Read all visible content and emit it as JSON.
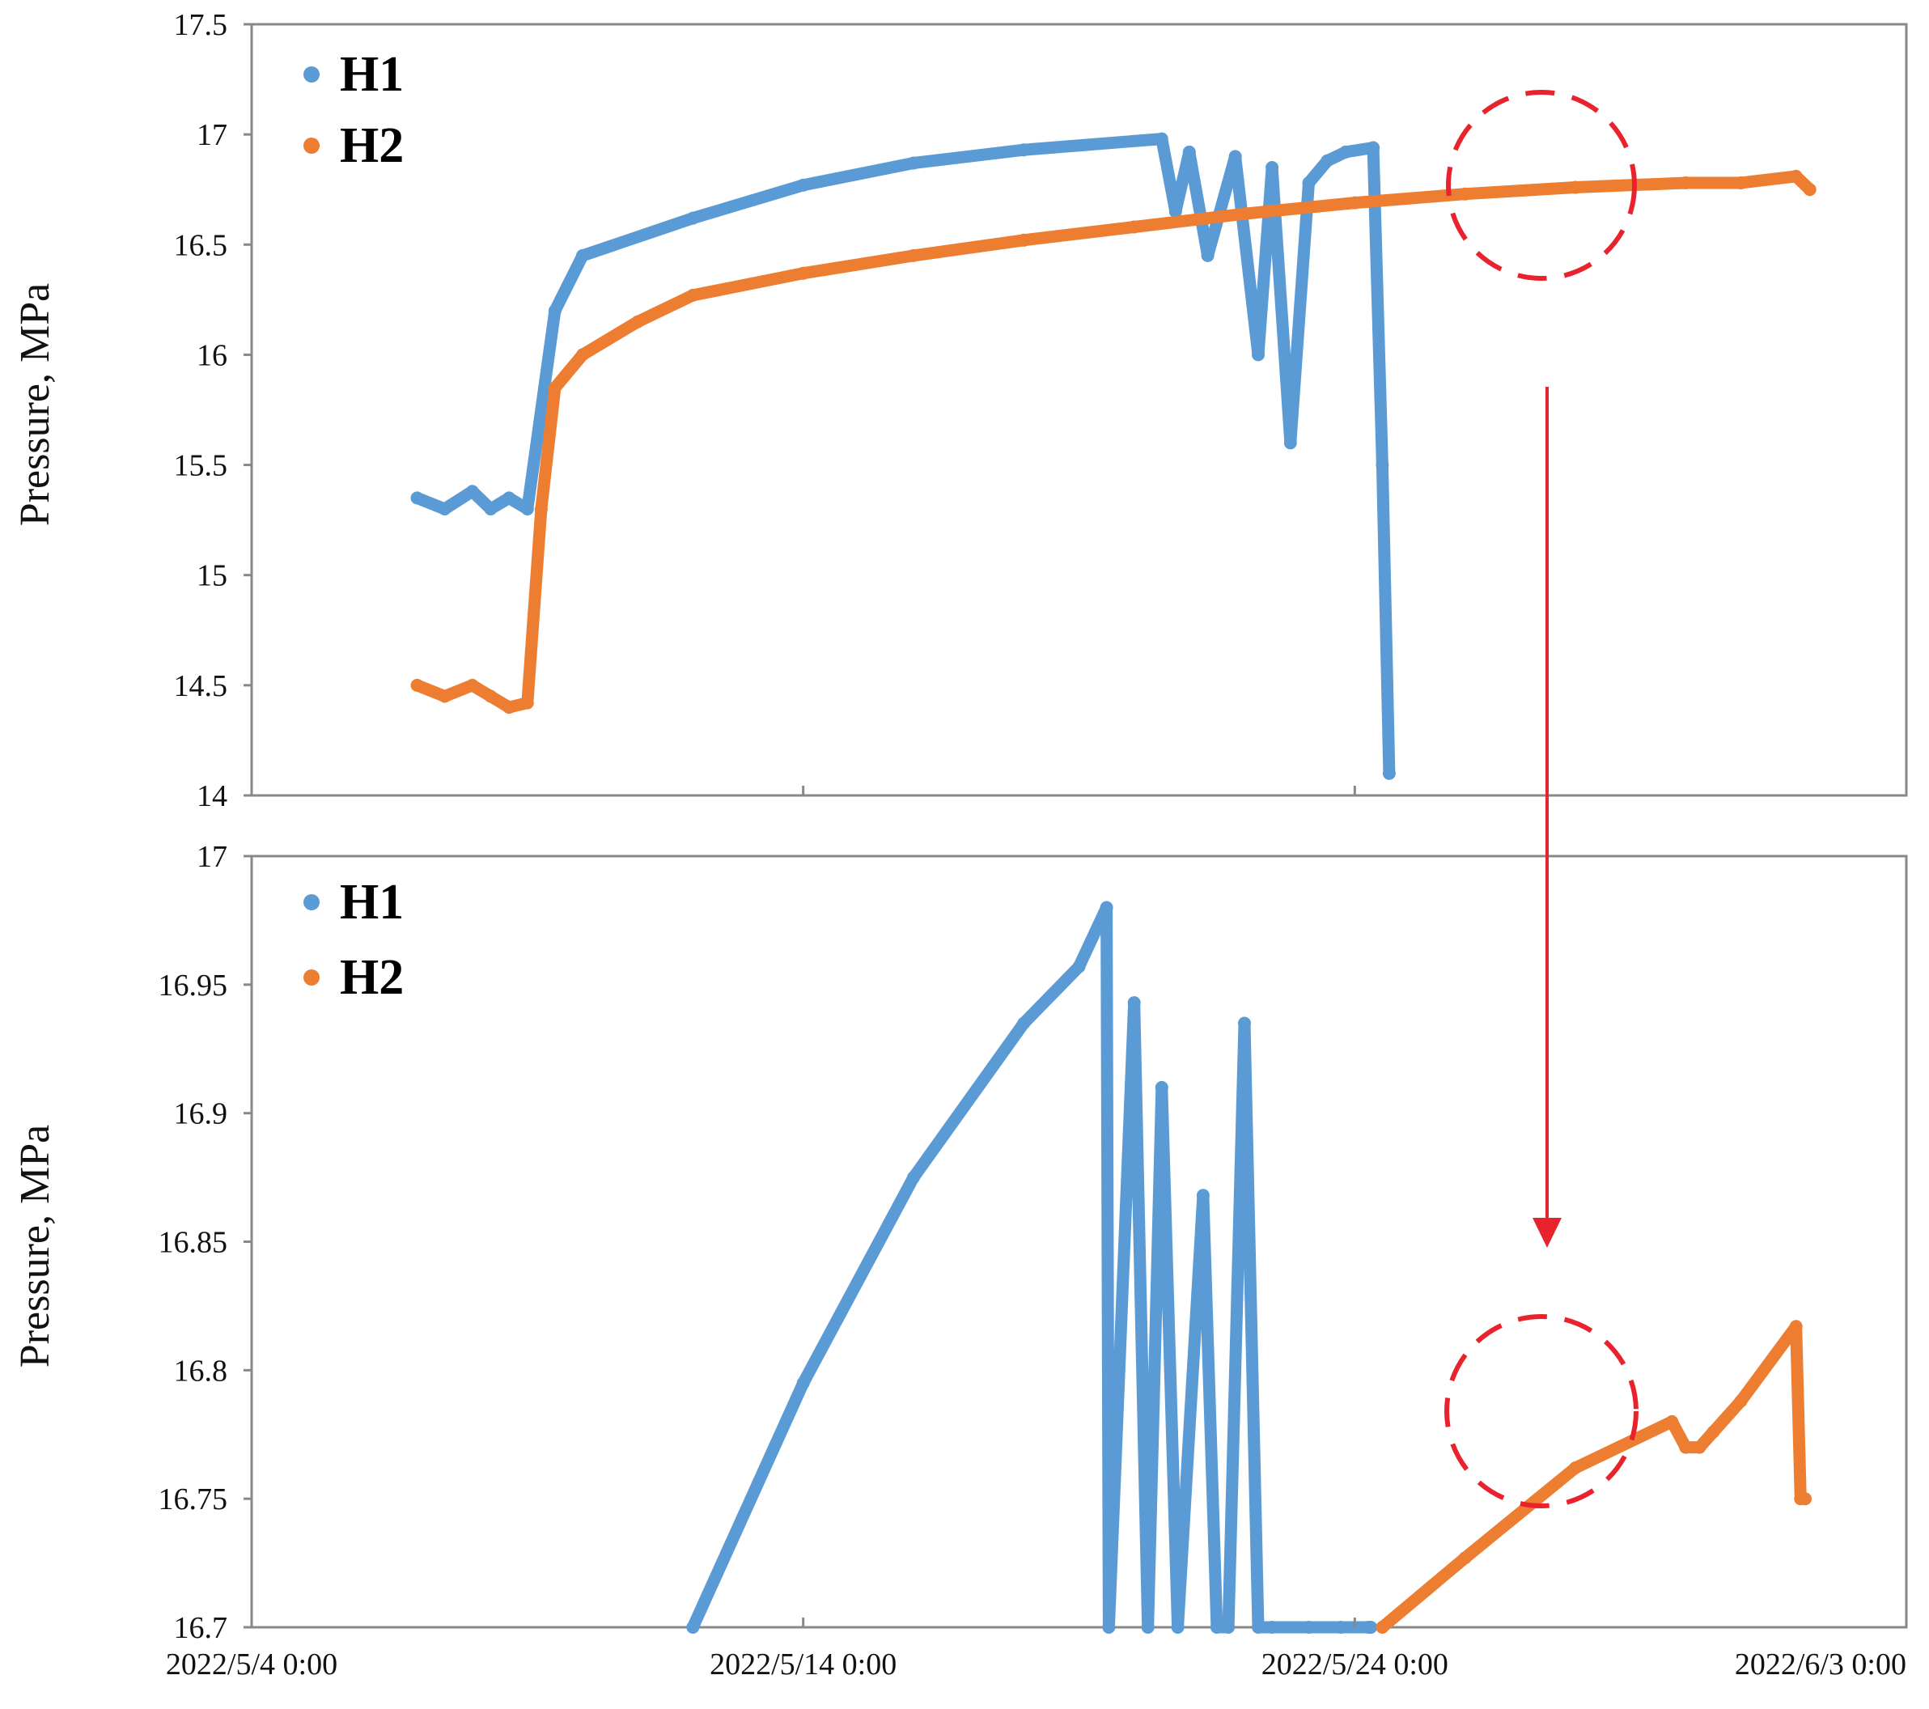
{
  "colors": {
    "H1": "#5B9BD5",
    "H2": "#ED7D31",
    "annotation": "#E8232D",
    "frame": "#888888"
  },
  "chart_data": [
    {
      "type": "scatter",
      "title": "",
      "xlabel": "",
      "ylabel": "Pressure, MPa",
      "xlim": [
        "2022-05-04",
        "2022-06-03"
      ],
      "ylim": [
        14,
        17.5
      ],
      "yticks": [
        14,
        14.5,
        15,
        15.5,
        16,
        16.5,
        17,
        17.5
      ],
      "ytick_labels": [
        "14",
        "14.5",
        "15",
        "15.5",
        "16",
        "16.5",
        "17",
        "17.5"
      ],
      "grid": false,
      "legend": {
        "position": "top-left",
        "entries": [
          "H1",
          "H2"
        ]
      },
      "annotation": "dashed circle around H2 near 2022-05-31",
      "series": [
        {
          "name": "H1",
          "x": [
            "2022-05-07 00:00",
            "2022-05-07 12:00",
            "2022-05-08 00:00",
            "2022-05-08 08:00",
            "2022-05-08 16:00",
            "2022-05-09 00:00",
            "2022-05-09 12:00",
            "2022-05-10 00:00",
            "2022-05-12 00:00",
            "2022-05-14 00:00",
            "2022-05-16 00:00",
            "2022-05-18 00:00",
            "2022-05-20 12:00",
            "2022-05-20 18:00",
            "2022-05-21 00:00",
            "2022-05-21 08:00",
            "2022-05-21 20:00",
            "2022-05-22 06:00",
            "2022-05-22 12:00",
            "2022-05-22 20:00",
            "2022-05-23 04:00",
            "2022-05-23 12:00",
            "2022-05-23 20:00",
            "2022-05-24 08:00",
            "2022-05-24 12:00",
            "2022-05-24 15:00"
          ],
          "y": [
            15.35,
            15.3,
            15.38,
            15.3,
            15.35,
            15.3,
            16.2,
            16.45,
            16.62,
            16.77,
            16.87,
            16.93,
            16.98,
            16.65,
            16.92,
            16.45,
            16.9,
            16.0,
            16.85,
            15.6,
            16.78,
            16.88,
            16.92,
            16.94,
            15.5,
            14.1
          ]
        },
        {
          "name": "H2",
          "x": [
            "2022-05-07 00:00",
            "2022-05-07 12:00",
            "2022-05-08 00:00",
            "2022-05-08 08:00",
            "2022-05-08 16:00",
            "2022-05-09 00:00",
            "2022-05-09 06:00",
            "2022-05-09 12:00",
            "2022-05-10 00:00",
            "2022-05-11 00:00",
            "2022-05-12 00:00",
            "2022-05-14 00:00",
            "2022-05-16 00:00",
            "2022-05-18 00:00",
            "2022-05-20 00:00",
            "2022-05-22 00:00",
            "2022-05-24 00:00",
            "2022-05-26 00:00",
            "2022-05-28 00:00",
            "2022-05-30 00:00",
            "2022-05-31 00:00",
            "2022-06-01 00:00",
            "2022-06-01 06:00"
          ],
          "y": [
            14.5,
            14.45,
            14.5,
            14.45,
            14.4,
            14.42,
            15.3,
            15.85,
            16.0,
            16.15,
            16.27,
            16.37,
            16.45,
            16.52,
            16.58,
            16.64,
            16.69,
            16.73,
            16.76,
            16.78,
            16.78,
            16.81,
            16.75
          ]
        }
      ]
    },
    {
      "type": "scatter",
      "title": "",
      "xlabel": "",
      "ylabel": "Pressure, MPa",
      "xlim": [
        "2022-05-04",
        "2022-06-03"
      ],
      "ylim": [
        16.7,
        17
      ],
      "yticks": [
        16.7,
        16.75,
        16.8,
        16.85,
        16.9,
        16.95,
        17
      ],
      "ytick_labels": [
        "16.7",
        "16.75",
        "16.8",
        "16.85",
        "16.9",
        "16.95",
        "17"
      ],
      "xticks": [
        "2022-05-04",
        "2022-05-14",
        "2022-05-24",
        "2022-06-03"
      ],
      "xtick_labels": [
        "2022/5/4 0:00",
        "2022/5/14 0:00",
        "2022/5/24 0:00",
        "2022/6/3 0:00"
      ],
      "grid": false,
      "legend": {
        "position": "top-left",
        "entries": [
          "H1",
          "H2"
        ]
      },
      "annotation": "dashed circle around the H2 dip near 2022-05-31",
      "series": [
        {
          "name": "H1",
          "x": [
            "2022-05-12 00:00",
            "2022-05-14 00:00",
            "2022-05-16 00:00",
            "2022-05-18 00:00",
            "2022-05-19 00:00",
            "2022-05-19 12:00",
            "2022-05-19 13:00",
            "2022-05-20 00:00",
            "2022-05-20 06:00",
            "2022-05-20 12:00",
            "2022-05-20 19:00",
            "2022-05-21 06:00",
            "2022-05-21 12:00",
            "2022-05-21 17:00",
            "2022-05-22 00:00",
            "2022-05-22 06:00",
            "2022-05-22 12:00",
            "2022-05-23 04:00",
            "2022-05-23 18:00",
            "2022-05-24 06:00",
            "2022-05-24 07:00"
          ],
          "y": [
            16.7,
            16.795,
            16.875,
            16.935,
            16.957,
            16.98,
            16.7,
            16.943,
            16.7,
            16.91,
            16.7,
            16.868,
            16.7,
            16.7,
            16.935,
            16.7,
            16.7,
            16.7,
            16.7,
            16.7,
            16.7
          ]
        },
        {
          "name": "H2",
          "x": [
            "2022-05-24 12:00",
            "2022-05-26 00:00",
            "2022-05-28 00:00",
            "2022-05-29 18:00",
            "2022-05-30 00:00",
            "2022-05-30 06:00",
            "2022-05-30 12:00",
            "2022-05-31 00:00",
            "2022-06-01 00:00",
            "2022-06-01 02:00",
            "2022-06-01 04:00"
          ],
          "y": [
            16.7,
            16.727,
            16.762,
            16.78,
            16.77,
            16.77,
            16.776,
            16.788,
            16.817,
            16.75,
            16.75
          ]
        }
      ]
    }
  ]
}
